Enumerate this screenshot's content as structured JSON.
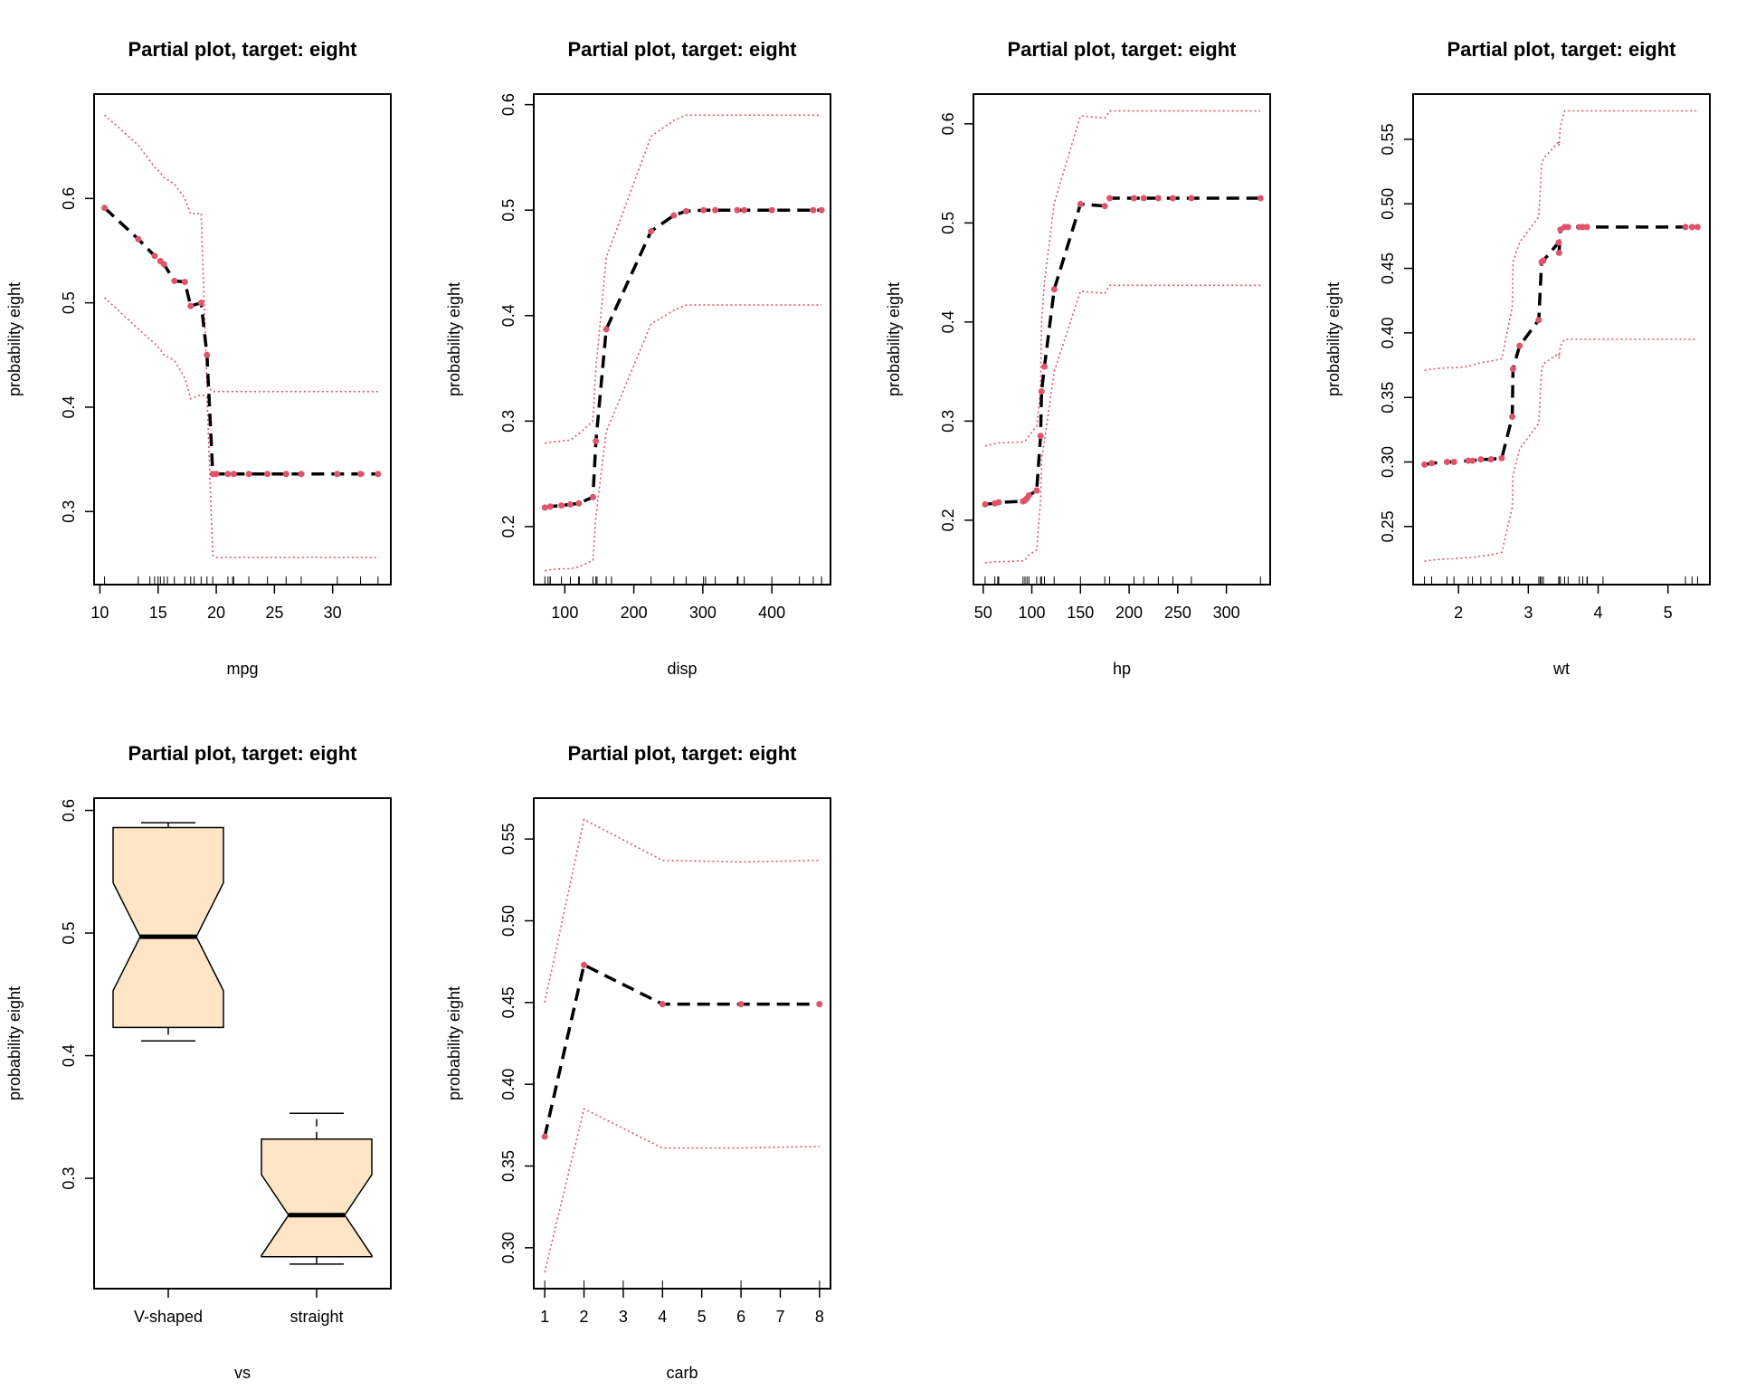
{
  "colors": {
    "mean": "#000000",
    "ci": "#DF536B",
    "box_fill": "#FDE5C5",
    "box_border": "#000000"
  },
  "chart_data": [
    {
      "type": "line",
      "title": "Partial plot, target: eight",
      "xlabel": "mpg",
      "ylabel": "probability eight",
      "xlim": [
        9.5,
        35.0
      ],
      "ylim": [
        0.23,
        0.7
      ],
      "xticks": [
        10,
        15,
        20,
        25,
        30
      ],
      "yticks": [
        0.3,
        0.4,
        0.5,
        0.6
      ],
      "x": [
        10.4,
        13.3,
        14.7,
        15.2,
        15.5,
        16.4,
        17.3,
        17.8,
        18.7,
        19.2,
        19.7,
        20.0,
        21.0,
        21.5,
        22.8,
        24.4,
        26.0,
        27.3,
        30.4,
        32.4,
        33.9
      ],
      "mean": [
        0.591,
        0.561,
        0.545,
        0.54,
        0.537,
        0.521,
        0.52,
        0.497,
        0.5,
        0.45,
        0.336,
        0.336,
        0.336,
        0.336,
        0.336,
        0.336,
        0.336,
        0.336,
        0.336,
        0.336,
        0.336
      ],
      "upper": [
        0.68,
        0.651,
        0.63,
        0.625,
        0.62,
        0.614,
        0.6,
        0.585,
        0.586,
        0.42,
        0.415,
        0.415,
        0.415,
        0.415,
        0.415,
        0.415,
        0.415,
        0.415,
        0.415,
        0.415,
        0.415
      ],
      "lower": [
        0.505,
        0.475,
        0.461,
        0.455,
        0.45,
        0.445,
        0.428,
        0.408,
        0.412,
        0.41,
        0.258,
        0.256,
        0.256,
        0.256,
        0.256,
        0.256,
        0.256,
        0.256,
        0.256,
        0.256,
        0.256
      ],
      "rug": [
        10.4,
        13.3,
        14.3,
        14.7,
        15.0,
        15.2,
        15.5,
        15.8,
        16.4,
        17.3,
        17.8,
        18.1,
        18.7,
        19.2,
        19.7,
        21.0,
        21.4,
        21.5,
        22.8,
        24.4,
        26.0,
        27.3,
        30.4,
        32.4,
        33.9
      ]
    },
    {
      "type": "line",
      "title": "Partial plot, target: eight",
      "xlabel": "disp",
      "ylabel": "probability eight",
      "xlim": [
        55,
        485
      ],
      "ylim": [
        0.145,
        0.61
      ],
      "xticks": [
        100,
        200,
        300,
        400
      ],
      "yticks": [
        0.2,
        0.3,
        0.4,
        0.5,
        0.6
      ],
      "x": [
        71.1,
        79.0,
        95.1,
        108.0,
        120.3,
        140.8,
        145.0,
        160.0,
        225.0,
        258.0,
        275.8,
        301.0,
        318.0,
        350.0,
        360.0,
        400.0,
        460.0,
        472.0
      ],
      "mean": [
        0.218,
        0.219,
        0.22,
        0.221,
        0.222,
        0.228,
        0.281,
        0.387,
        0.48,
        0.495,
        0.499,
        0.5,
        0.5,
        0.5,
        0.5,
        0.5,
        0.5,
        0.5
      ],
      "upper": [
        0.279,
        0.28,
        0.281,
        0.282,
        0.288,
        0.3,
        0.35,
        0.455,
        0.57,
        0.585,
        0.59,
        0.59,
        0.59,
        0.59,
        0.59,
        0.59,
        0.59,
        0.59
      ],
      "lower": [
        0.158,
        0.159,
        0.16,
        0.16,
        0.162,
        0.168,
        0.21,
        0.29,
        0.392,
        0.405,
        0.41,
        0.41,
        0.41,
        0.41,
        0.41,
        0.41,
        0.41,
        0.41
      ],
      "rug": [
        71.1,
        75.7,
        78.7,
        79.0,
        95.1,
        108.0,
        120.1,
        120.3,
        121.0,
        140.8,
        145.0,
        146.7,
        160.0,
        167.6,
        225.0,
        258.0,
        275.8,
        301.0,
        304.0,
        318.0,
        350.0,
        351.0,
        360.0,
        400.0,
        440.0,
        460.0,
        472.0
      ]
    },
    {
      "type": "line",
      "title": "Partial plot, target: eight",
      "xlabel": "hp",
      "ylabel": "probability eight",
      "xlim": [
        40,
        345
      ],
      "ylim": [
        0.135,
        0.63
      ],
      "xticks": [
        50,
        100,
        150,
        200,
        250,
        300
      ],
      "yticks": [
        0.2,
        0.3,
        0.4,
        0.5,
        0.6
      ],
      "x": [
        52,
        62,
        66,
        91,
        93,
        95,
        97,
        105,
        109,
        110,
        113,
        123,
        150,
        175,
        180,
        205,
        215,
        230,
        245,
        264,
        335
      ],
      "mean": [
        0.216,
        0.217,
        0.218,
        0.219,
        0.22,
        0.222,
        0.225,
        0.23,
        0.285,
        0.33,
        0.355,
        0.433,
        0.519,
        0.517,
        0.525,
        0.525,
        0.525,
        0.525,
        0.525,
        0.525,
        0.525
      ],
      "upper": [
        0.275,
        0.277,
        0.278,
        0.279,
        0.28,
        0.282,
        0.285,
        0.295,
        0.33,
        0.4,
        0.44,
        0.52,
        0.608,
        0.606,
        0.613,
        0.613,
        0.613,
        0.613,
        0.613,
        0.613,
        0.613
      ],
      "lower": [
        0.157,
        0.158,
        0.158,
        0.159,
        0.16,
        0.162,
        0.165,
        0.17,
        0.22,
        0.26,
        0.28,
        0.35,
        0.431,
        0.429,
        0.437,
        0.437,
        0.437,
        0.437,
        0.437,
        0.437,
        0.437
      ],
      "rug": [
        52,
        62,
        65,
        66,
        91,
        93,
        95,
        97,
        105,
        109,
        110,
        113,
        123,
        150,
        175,
        180,
        205,
        215,
        230,
        245,
        264,
        335
      ]
    },
    {
      "type": "line",
      "title": "Partial plot, target: eight",
      "xlabel": "wt",
      "ylabel": "probability eight",
      "xlim": [
        1.35,
        5.6
      ],
      "ylim": [
        0.205,
        0.585
      ],
      "xticks": [
        2,
        3,
        4,
        5
      ],
      "yticks": [
        0.25,
        0.3,
        0.35,
        0.4,
        0.45,
        0.5,
        0.55
      ],
      "x": [
        1.513,
        1.615,
        1.835,
        1.935,
        2.14,
        2.2,
        2.32,
        2.465,
        2.62,
        2.77,
        2.78,
        2.875,
        3.15,
        3.19,
        3.215,
        3.435,
        3.44,
        3.46,
        3.52,
        3.57,
        3.73,
        3.78,
        3.84,
        5.25,
        5.345,
        5.424
      ],
      "mean": [
        0.298,
        0.299,
        0.3,
        0.3,
        0.301,
        0.301,
        0.302,
        0.302,
        0.303,
        0.335,
        0.372,
        0.39,
        0.41,
        0.455,
        0.456,
        0.47,
        0.462,
        0.48,
        0.482,
        0.482,
        0.482,
        0.482,
        0.482,
        0.482,
        0.482,
        0.482
      ],
      "upper": [
        0.371,
        0.372,
        0.373,
        0.373,
        0.374,
        0.375,
        0.377,
        0.378,
        0.38,
        0.42,
        0.455,
        0.47,
        0.49,
        0.53,
        0.535,
        0.548,
        0.545,
        0.56,
        0.572,
        0.572,
        0.572,
        0.572,
        0.572,
        0.572,
        0.572,
        0.572
      ],
      "lower": [
        0.223,
        0.224,
        0.225,
        0.225,
        0.226,
        0.226,
        0.227,
        0.228,
        0.23,
        0.265,
        0.29,
        0.31,
        0.33,
        0.37,
        0.376,
        0.384,
        0.38,
        0.39,
        0.395,
        0.395,
        0.395,
        0.395,
        0.395,
        0.395,
        0.395,
        0.395
      ],
      "rug": [
        1.513,
        1.615,
        1.835,
        1.935,
        2.14,
        2.2,
        2.32,
        2.465,
        2.62,
        2.77,
        2.78,
        2.875,
        3.15,
        3.17,
        3.19,
        3.215,
        3.435,
        3.44,
        3.46,
        3.52,
        3.57,
        3.73,
        3.78,
        3.84,
        3.845,
        4.07,
        5.25,
        5.345,
        5.424
      ]
    },
    {
      "type": "box",
      "title": "Partial plot, target: eight",
      "xlabel": "vs",
      "ylabel": "probability eight",
      "ylim": [
        0.21,
        0.61
      ],
      "yticks": [
        0.3,
        0.4,
        0.5,
        0.6
      ],
      "categories": [
        "V-shaped",
        "straight"
      ],
      "boxes": [
        {
          "min": 0.412,
          "q1": 0.423,
          "median": 0.497,
          "q3": 0.586,
          "max": 0.59,
          "notch_lo": 0.453,
          "notch_hi": 0.541
        },
        {
          "min": 0.23,
          "q1": 0.236,
          "median": 0.27,
          "q3": 0.332,
          "max": 0.353,
          "notch_lo": 0.237,
          "notch_hi": 0.303
        }
      ]
    },
    {
      "type": "line",
      "title": "Partial plot, target: eight",
      "xlabel": "carb",
      "ylabel": "probability eight",
      "xlim": [
        0.72,
        8.28
      ],
      "ylim": [
        0.275,
        0.575
      ],
      "xticks": [
        1,
        2,
        3,
        4,
        5,
        6,
        7,
        8
      ],
      "yticks": [
        0.3,
        0.35,
        0.4,
        0.45,
        0.5,
        0.55
      ],
      "x": [
        1,
        2,
        4,
        6,
        8
      ],
      "mean": [
        0.368,
        0.473,
        0.449,
        0.449,
        0.449
      ],
      "upper": [
        0.45,
        0.562,
        0.537,
        0.536,
        0.537
      ],
      "lower": [
        0.285,
        0.385,
        0.361,
        0.361,
        0.362
      ],
      "rug": [
        1,
        2,
        3,
        4,
        6,
        8
      ]
    }
  ]
}
